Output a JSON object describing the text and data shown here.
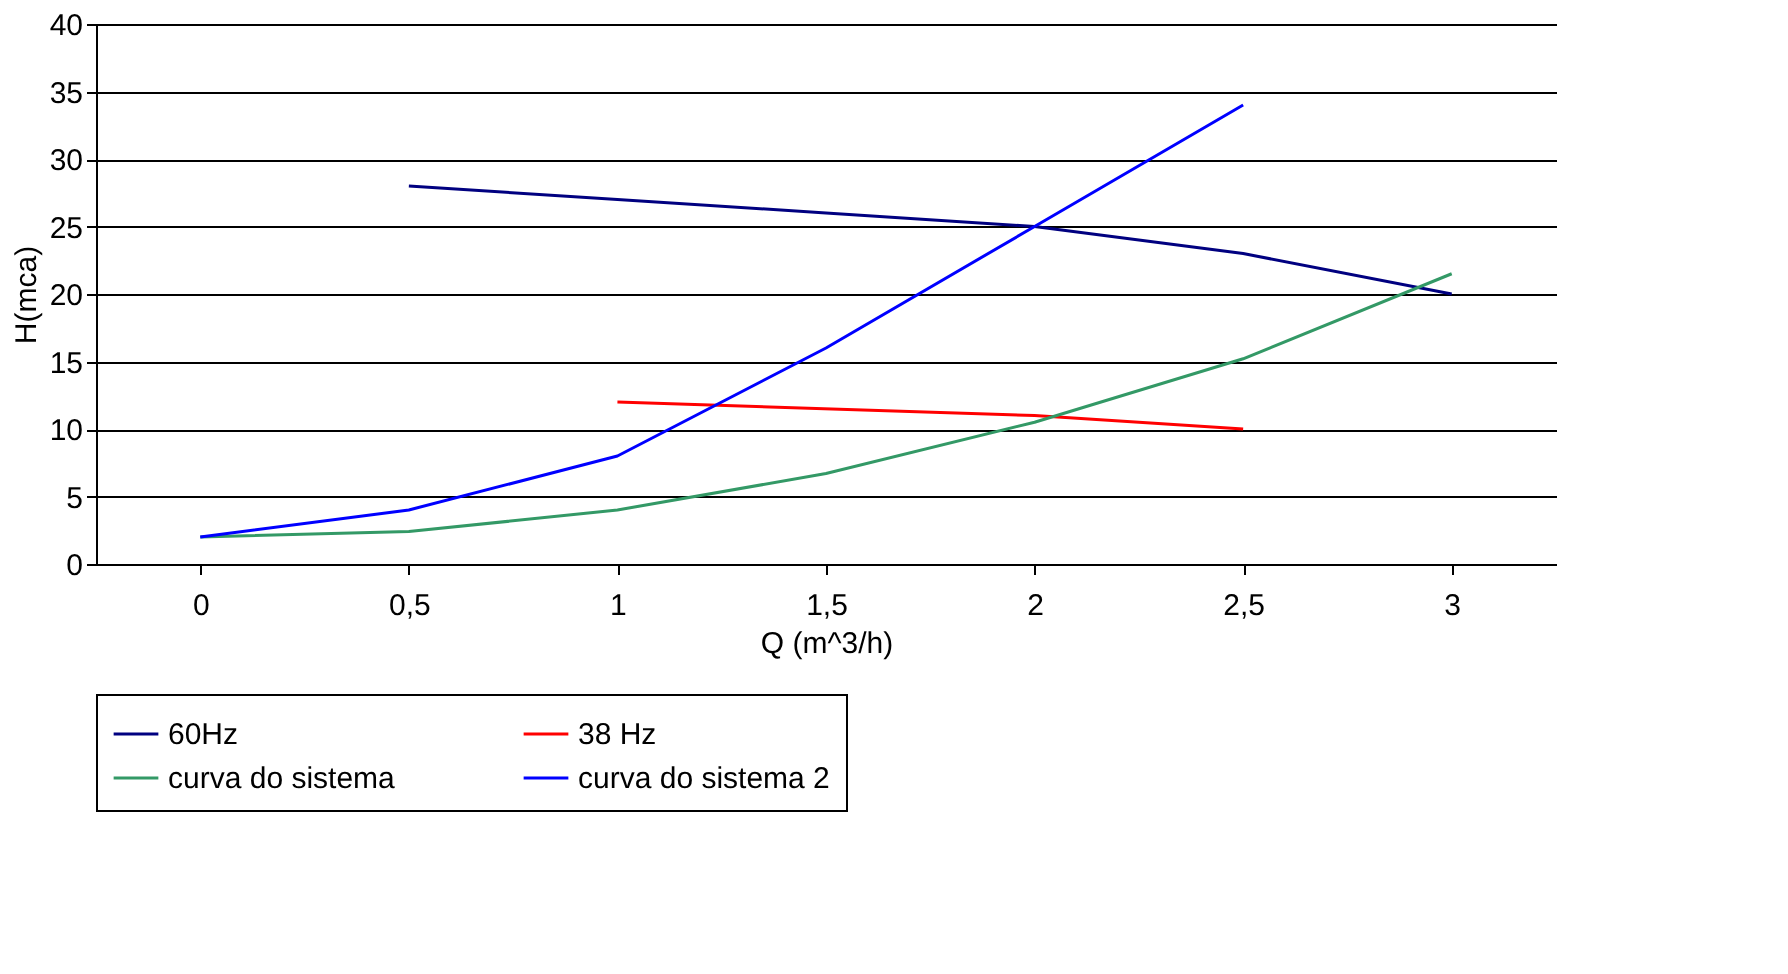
{
  "chart_data": {
    "type": "line",
    "xlabel": "Q (m^3/h)",
    "ylabel": "H(mca)",
    "xlim": [
      -0.25,
      3.25
    ],
    "xticks": [
      0,
      {
        "value": 0.5,
        "label": "0,5"
      },
      1,
      {
        "value": 1.5,
        "label": "1,5"
      },
      2,
      {
        "value": 2.5,
        "label": "2,5"
      },
      3
    ],
    "ylim": [
      0,
      40
    ],
    "yticks": [
      0,
      5,
      10,
      15,
      20,
      25,
      30,
      35,
      40
    ],
    "grid": "y",
    "legend": "bottom",
    "marker": "none",
    "series": [
      {
        "name": "60Hz",
        "color": "#000080",
        "x": [
          0.5,
          1,
          1.5,
          2,
          2.5,
          3
        ],
        "values": [
          28,
          27,
          26,
          25,
          23,
          20
        ]
      },
      {
        "name": "38 Hz",
        "color": "#ff0000",
        "x": [
          1,
          2,
          2.5
        ],
        "values": [
          12,
          11,
          10
        ]
      },
      {
        "name": "curva do sistema",
        "color": "#339966",
        "x": [
          0,
          0.5,
          1,
          1.5,
          2,
          2.5,
          3
        ],
        "values": [
          2,
          2.4,
          4,
          6.7,
          10.5,
          15.2,
          21.5
        ]
      },
      {
        "name": "curva do sistema 2",
        "color": "#0000ff",
        "x": [
          0,
          0.5,
          1,
          1.5,
          2,
          2.5
        ],
        "values": [
          2,
          4,
          8,
          16,
          25,
          34
        ]
      }
    ]
  }
}
